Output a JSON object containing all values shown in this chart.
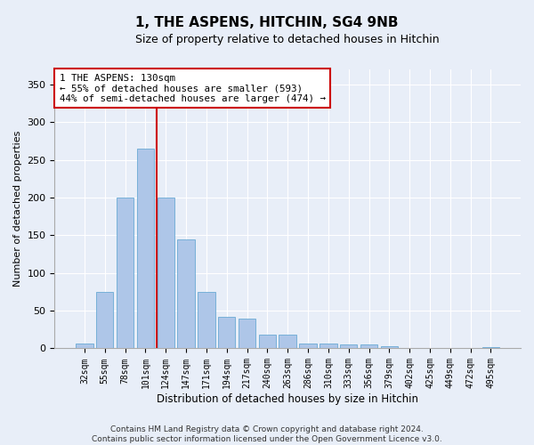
{
  "title": "1, THE ASPENS, HITCHIN, SG4 9NB",
  "subtitle": "Size of property relative to detached houses in Hitchin",
  "xlabel": "Distribution of detached houses by size in Hitchin",
  "ylabel": "Number of detached properties",
  "categories": [
    "32sqm",
    "55sqm",
    "78sqm",
    "101sqm",
    "124sqm",
    "147sqm",
    "171sqm",
    "194sqm",
    "217sqm",
    "240sqm",
    "263sqm",
    "286sqm",
    "310sqm",
    "333sqm",
    "356sqm",
    "379sqm",
    "402sqm",
    "425sqm",
    "449sqm",
    "472sqm",
    "495sqm"
  ],
  "values": [
    6,
    75,
    200,
    265,
    200,
    145,
    75,
    42,
    40,
    18,
    18,
    6,
    6,
    5,
    5,
    3,
    1,
    0,
    0,
    0,
    2
  ],
  "bar_color": "#aec6e8",
  "bar_edge_color": "#6aaad4",
  "vline_color": "#cc0000",
  "vline_x_index": 4,
  "ylim": [
    0,
    370
  ],
  "yticks": [
    0,
    50,
    100,
    150,
    200,
    250,
    300,
    350
  ],
  "annotation_title": "1 THE ASPENS: 130sqm",
  "annotation_line1": "← 55% of detached houses are smaller (593)",
  "annotation_line2": "44% of semi-detached houses are larger (474) →",
  "annotation_box_facecolor": "#ffffff",
  "annotation_box_edgecolor": "#cc0000",
  "footer_line1": "Contains HM Land Registry data © Crown copyright and database right 2024.",
  "footer_line2": "Contains public sector information licensed under the Open Government Licence v3.0.",
  "background_color": "#e8eef8",
  "plot_bg_color": "#e8eef8",
  "grid_color": "#ffffff",
  "title_fontsize": 11,
  "subtitle_fontsize": 9
}
